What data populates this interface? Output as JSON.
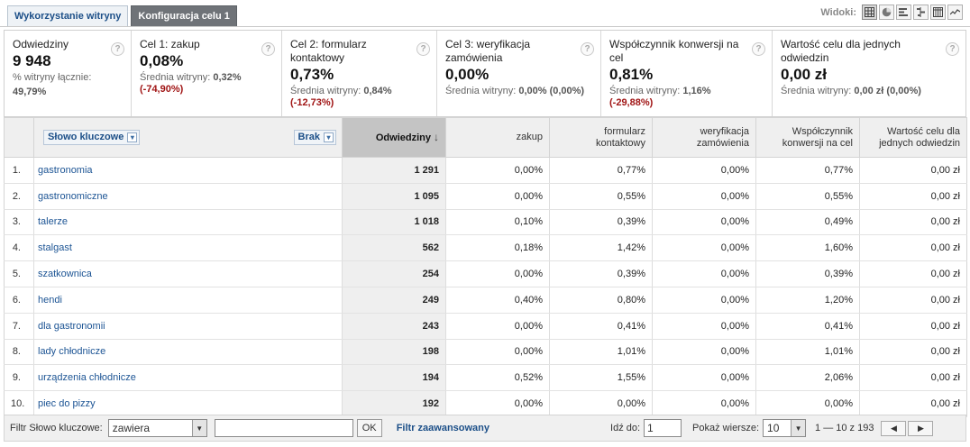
{
  "tabs": [
    {
      "label": "Wykorzystanie witryny",
      "active": false
    },
    {
      "label": "Konfiguracja celu 1",
      "active": true
    }
  ],
  "views": {
    "label": "Widoki:",
    "icons": [
      "table-view-icon",
      "pie-view-icon",
      "performance-view-icon",
      "comparison-view-icon",
      "pivot-view-icon",
      "term-cloud-icon"
    ]
  },
  "scorecard": [
    {
      "label": "Odwiedziny",
      "value": "9 948",
      "sub_label": "% witryny łącznie:",
      "sub_value": "49,79%",
      "change": ""
    },
    {
      "label": "Cel 1: zakup",
      "value": "0,08%",
      "sub_label": "Średnia witryny:",
      "sub_value": "0,32%",
      "change": "(-74,90%)"
    },
    {
      "label": "Cel 2: formularz kontaktowy",
      "value": "0,73%",
      "sub_label": "Średnia witryny:",
      "sub_value": "0,84%",
      "change": "(-12,73%)"
    },
    {
      "label": "Cel 3: weryfikacja zamówienia",
      "value": "0,00%",
      "sub_label": "Średnia witryny:",
      "sub_value": "0,00% (0,00%)",
      "change": ""
    },
    {
      "label": "Współczynnik konwersji na cel",
      "value": "0,81%",
      "sub_label": "Średnia witryny:",
      "sub_value": "1,16%",
      "change": "(-29,88%)"
    },
    {
      "label": "Wartość celu dla jednych odwiedzin",
      "value": "0,00 zł",
      "sub_label": "Średnia witryny:",
      "sub_value": "0,00 zł (0,00%)",
      "change": ""
    }
  ],
  "help_glyph": "?",
  "table": {
    "dimension": "Słowo kluczowe",
    "secondary": "Brak",
    "columns": [
      "Odwiedziny",
      "zakup",
      "formularz kontaktowy",
      "weryfikacja zamówienia",
      "Współczynnik konwersji na cel",
      "Wartość celu dla jednych odwiedzin"
    ],
    "rows": [
      {
        "n": "1.",
        "kw": "gastronomia",
        "visits": "1 291",
        "c1": "0,00%",
        "c2": "0,77%",
        "c3": "0,00%",
        "conv": "0,77%",
        "val": "0,00 zł"
      },
      {
        "n": "2.",
        "kw": "gastronomiczne",
        "visits": "1 095",
        "c1": "0,00%",
        "c2": "0,55%",
        "c3": "0,00%",
        "conv": "0,55%",
        "val": "0,00 zł"
      },
      {
        "n": "3.",
        "kw": "talerze",
        "visits": "1 018",
        "c1": "0,10%",
        "c2": "0,39%",
        "c3": "0,00%",
        "conv": "0,49%",
        "val": "0,00 zł"
      },
      {
        "n": "4.",
        "kw": "stalgast",
        "visits": "562",
        "c1": "0,18%",
        "c2": "1,42%",
        "c3": "0,00%",
        "conv": "1,60%",
        "val": "0,00 zł"
      },
      {
        "n": "5.",
        "kw": "szatkownica",
        "visits": "254",
        "c1": "0,00%",
        "c2": "0,39%",
        "c3": "0,00%",
        "conv": "0,39%",
        "val": "0,00 zł"
      },
      {
        "n": "6.",
        "kw": "hendi",
        "visits": "249",
        "c1": "0,40%",
        "c2": "0,80%",
        "c3": "0,00%",
        "conv": "1,20%",
        "val": "0,00 zł"
      },
      {
        "n": "7.",
        "kw": "dla gastronomii",
        "visits": "243",
        "c1": "0,00%",
        "c2": "0,41%",
        "c3": "0,00%",
        "conv": "0,41%",
        "val": "0,00 zł"
      },
      {
        "n": "8.",
        "kw": "lady chłodnicze",
        "visits": "198",
        "c1": "0,00%",
        "c2": "1,01%",
        "c3": "0,00%",
        "conv": "1,01%",
        "val": "0,00 zł"
      },
      {
        "n": "9.",
        "kw": "urządzenia chłodnicze",
        "visits": "194",
        "c1": "0,52%",
        "c2": "1,55%",
        "c3": "0,00%",
        "conv": "2,06%",
        "val": "0,00 zł"
      },
      {
        "n": "10.",
        "kw": "piec do pizzy",
        "visits": "192",
        "c1": "0,00%",
        "c2": "0,00%",
        "c3": "0,00%",
        "conv": "0,00%",
        "val": "0,00 zł"
      }
    ]
  },
  "footer": {
    "filter_label": "Filtr Słowo kluczowe:",
    "filter_mode": "zawiera",
    "filter_value": "",
    "ok": "OK",
    "advanced": "Filtr zaawansowany",
    "goto_label": "Idź do:",
    "goto_value": "1",
    "show_label": "Pokaż wiersze:",
    "show_value": "10",
    "range": "1 — 10 z 193"
  }
}
